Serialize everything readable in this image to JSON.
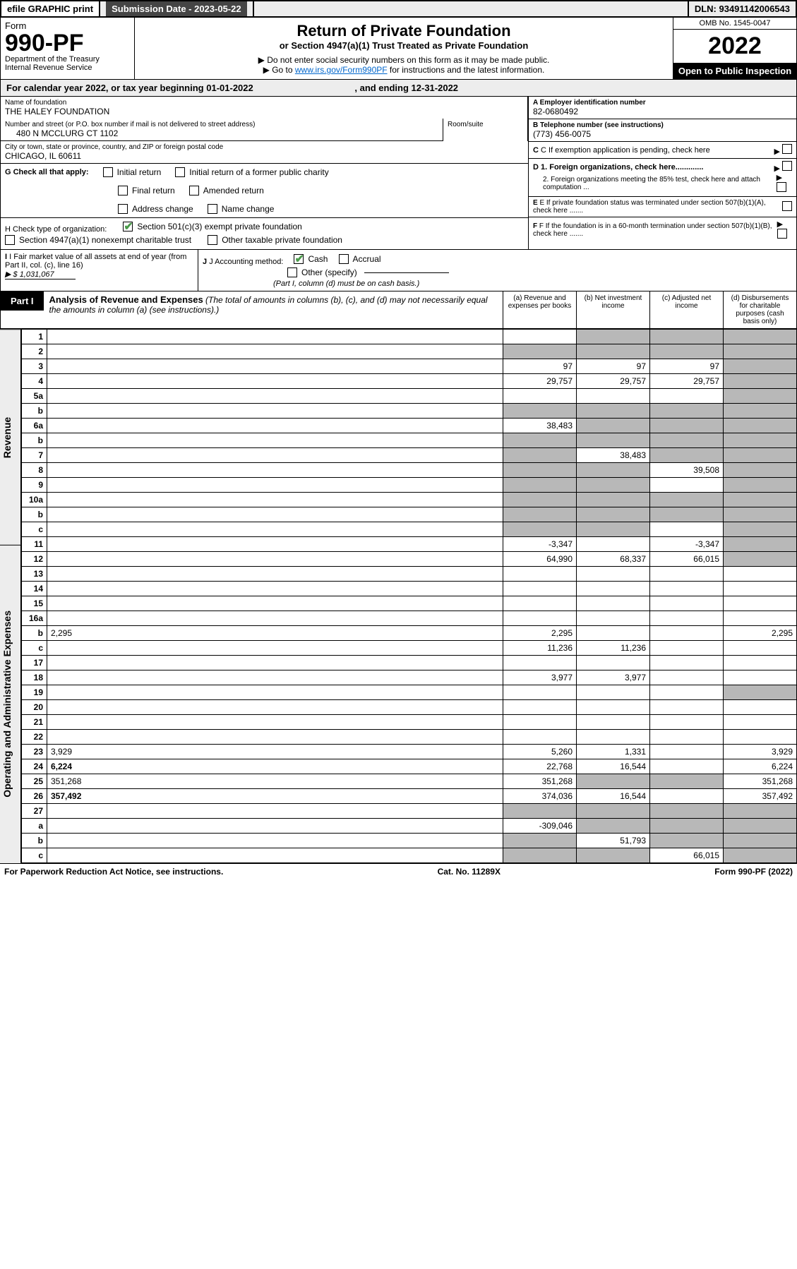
{
  "top": {
    "efile": "efile GRAPHIC print",
    "sub_label": "Submission Date - 2023-05-22",
    "dln": "DLN: 93491142006543"
  },
  "header": {
    "form_label": "Form",
    "form_no": "990-PF",
    "dept": "Department of the Treasury",
    "irs": "Internal Revenue Service",
    "title": "Return of Private Foundation",
    "subtitle": "or Section 4947(a)(1) Trust Treated as Private Foundation",
    "instr1": "▶ Do not enter social security numbers on this form as it may be made public.",
    "instr2_pre": "▶ Go to ",
    "instr2_link": "www.irs.gov/Form990PF",
    "instr2_post": " for instructions and the latest information.",
    "omb": "OMB No. 1545-0047",
    "year": "2022",
    "open": "Open to Public Inspection"
  },
  "cal_year": {
    "text_pre": "For calendar year 2022, or tax year beginning ",
    "begin": "01-01-2022",
    "mid": " , and ending ",
    "end": "12-31-2022"
  },
  "info": {
    "name_lbl": "Name of foundation",
    "name": "THE HALEY FOUNDATION",
    "addr_lbl": "Number and street (or P.O. box number if mail is not delivered to street address)",
    "addr": "480 N MCCLURG CT 1102",
    "room_lbl": "Room/suite",
    "city_lbl": "City or town, state or province, country, and ZIP or foreign postal code",
    "city": "CHICAGO, IL  60611",
    "ein_lbl": "A Employer identification number",
    "ein": "82-0680492",
    "tel_lbl": "B Telephone number (see instructions)",
    "tel": "(773) 456-0075",
    "c": "C If exemption application is pending, check here",
    "d1": "D 1. Foreign organizations, check here.............",
    "d2": "2. Foreign organizations meeting the 85% test, check here and attach computation ...",
    "e": "E  If private foundation status was terminated under section 507(b)(1)(A), check here .......",
    "f": "F  If the foundation is in a 60-month termination under section 507(b)(1)(B), check here .......",
    "g_lbl": "G Check all that apply:",
    "g_opts": [
      "Initial return",
      "Initial return of a former public charity",
      "Final return",
      "Amended return",
      "Address change",
      "Name change"
    ],
    "h_lbl": "H Check type of organization:",
    "h_opts": [
      "Section 501(c)(3) exempt private foundation",
      "Section 4947(a)(1) nonexempt charitable trust",
      "Other taxable private foundation"
    ],
    "i_lbl": "I Fair market value of all assets at end of year (from Part II, col. (c), line 16)",
    "i_val": "▶ $  1,031,067",
    "j_lbl": "J Accounting method:",
    "j_cash": "Cash",
    "j_accrual": "Accrual",
    "j_other": "Other (specify)",
    "j_note": "(Part I, column (d) must be on cash basis.)"
  },
  "part1": {
    "tag": "Part I",
    "title": "Analysis of Revenue and Expenses",
    "note": " (The total of amounts in columns (b), (c), and (d) may not necessarily equal the amounts in column (a) (see instructions).)",
    "cols": {
      "a": "(a)  Revenue and expenses per books",
      "b": "(b)  Net investment income",
      "c": "(c)  Adjusted net income",
      "d": "(d)  Disbursements for charitable purposes (cash basis only)"
    }
  },
  "side_labels": {
    "revenue": "Revenue",
    "expenses": "Operating and Administrative Expenses"
  },
  "rows": [
    {
      "n": "1",
      "d": "",
      "a": "",
      "b": "",
      "c": "",
      "sb": true,
      "sc": true,
      "sd": true
    },
    {
      "n": "2",
      "d": "",
      "a": "",
      "b": "",
      "c": "",
      "sa": true,
      "sb": true,
      "sc": true,
      "sd": true
    },
    {
      "n": "3",
      "d": "",
      "a": "97",
      "b": "97",
      "c": "97",
      "sd": true
    },
    {
      "n": "4",
      "d": "",
      "a": "29,757",
      "b": "29,757",
      "c": "29,757",
      "sd": true
    },
    {
      "n": "5a",
      "d": "",
      "a": "",
      "b": "",
      "c": "",
      "sd": true
    },
    {
      "n": "b",
      "d": "",
      "a": "",
      "b": "",
      "c": "",
      "sa": true,
      "sb": true,
      "sc": true,
      "sd": true
    },
    {
      "n": "6a",
      "d": "",
      "a": "38,483",
      "b": "",
      "c": "",
      "sb": true,
      "sc": true,
      "sd": true
    },
    {
      "n": "b",
      "d": "",
      "a": "",
      "b": "",
      "c": "",
      "sa": true,
      "sb": true,
      "sc": true,
      "sd": true
    },
    {
      "n": "7",
      "d": "",
      "a": "",
      "b": "38,483",
      "c": "",
      "sa": true,
      "sc": true,
      "sd": true
    },
    {
      "n": "8",
      "d": "",
      "a": "",
      "b": "",
      "c": "39,508",
      "sa": true,
      "sb": true,
      "sd": true
    },
    {
      "n": "9",
      "d": "",
      "a": "",
      "b": "",
      "c": "",
      "sa": true,
      "sb": true,
      "sd": true
    },
    {
      "n": "10a",
      "d": "",
      "a": "",
      "b": "",
      "c": "",
      "sa": true,
      "sb": true,
      "sc": true,
      "sd": true
    },
    {
      "n": "b",
      "d": "",
      "a": "",
      "b": "",
      "c": "",
      "sa": true,
      "sb": true,
      "sc": true,
      "sd": true
    },
    {
      "n": "c",
      "d": "",
      "a": "",
      "b": "",
      "c": "",
      "sa": true,
      "sb": true,
      "sd": true
    },
    {
      "n": "11",
      "d": "",
      "a": "-3,347",
      "b": "",
      "c": "-3,347",
      "sd": true
    },
    {
      "n": "12",
      "d": "",
      "a": "64,990",
      "b": "68,337",
      "c": "66,015",
      "bold": true,
      "sd": true
    },
    {
      "n": "13",
      "d": "",
      "a": "",
      "b": "",
      "c": ""
    },
    {
      "n": "14",
      "d": "",
      "a": "",
      "b": "",
      "c": ""
    },
    {
      "n": "15",
      "d": "",
      "a": "",
      "b": "",
      "c": ""
    },
    {
      "n": "16a",
      "d": "",
      "a": "",
      "b": "",
      "c": ""
    },
    {
      "n": "b",
      "d": "2,295",
      "a": "2,295",
      "b": "",
      "c": ""
    },
    {
      "n": "c",
      "d": "",
      "a": "11,236",
      "b": "11,236",
      "c": ""
    },
    {
      "n": "17",
      "d": "",
      "a": "",
      "b": "",
      "c": ""
    },
    {
      "n": "18",
      "d": "",
      "a": "3,977",
      "b": "3,977",
      "c": ""
    },
    {
      "n": "19",
      "d": "",
      "a": "",
      "b": "",
      "c": "",
      "sd": true
    },
    {
      "n": "20",
      "d": "",
      "a": "",
      "b": "",
      "c": ""
    },
    {
      "n": "21",
      "d": "",
      "a": "",
      "b": "",
      "c": ""
    },
    {
      "n": "22",
      "d": "",
      "a": "",
      "b": "",
      "c": ""
    },
    {
      "n": "23",
      "d": "3,929",
      "a": "5,260",
      "b": "1,331",
      "c": ""
    },
    {
      "n": "24",
      "d": "6,224",
      "a": "22,768",
      "b": "16,544",
      "c": "",
      "bold": true
    },
    {
      "n": "25",
      "d": "351,268",
      "a": "351,268",
      "b": "",
      "c": "",
      "sb": true,
      "sc": true
    },
    {
      "n": "26",
      "d": "357,492",
      "a": "374,036",
      "b": "16,544",
      "c": "",
      "bold": true
    },
    {
      "n": "27",
      "d": "",
      "a": "",
      "b": "",
      "c": "",
      "sa": true,
      "sb": true,
      "sc": true,
      "sd": true
    },
    {
      "n": "a",
      "d": "",
      "a": "-309,046",
      "b": "",
      "c": "",
      "bold": true,
      "sb": true,
      "sc": true,
      "sd": true
    },
    {
      "n": "b",
      "d": "",
      "a": "",
      "b": "51,793",
      "c": "",
      "bold": true,
      "sa": true,
      "sc": true,
      "sd": true
    },
    {
      "n": "c",
      "d": "",
      "a": "",
      "b": "",
      "c": "66,015",
      "bold": true,
      "sa": true,
      "sb": true,
      "sd": true
    }
  ],
  "footer": {
    "left": "For Paperwork Reduction Act Notice, see instructions.",
    "mid": "Cat. No. 11289X",
    "right": "Form 990-PF (2022)"
  }
}
